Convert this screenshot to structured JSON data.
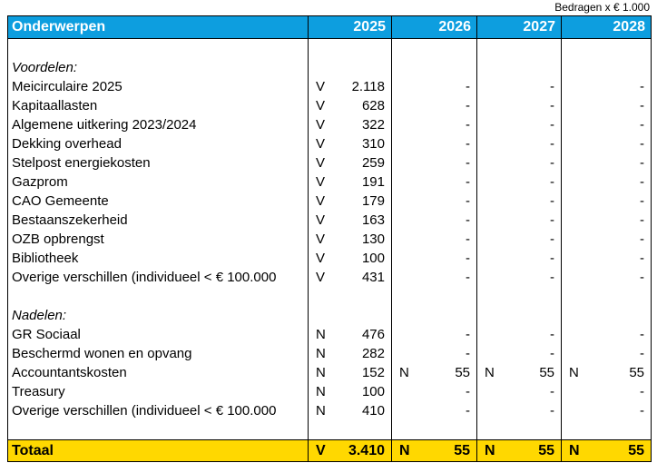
{
  "caption": "Bedragen x € 1.000",
  "colors": {
    "header_bg": "#0D9EDF",
    "header_text": "#ffffff",
    "total_bg": "#FFD800",
    "border": "#000000"
  },
  "table": {
    "header": {
      "label": "Onderwerpen",
      "years": [
        "2025",
        "2026",
        "2027",
        "2028"
      ]
    },
    "rows": [
      {
        "label": "",
        "italic": false,
        "cells": [
          {
            "sign": "",
            "value": ""
          },
          {
            "sign": "",
            "value": ""
          },
          {
            "sign": "",
            "value": ""
          },
          {
            "sign": "",
            "value": ""
          }
        ]
      },
      {
        "label": "Voordelen:",
        "italic": true,
        "cells": [
          {
            "sign": "",
            "value": ""
          },
          {
            "sign": "",
            "value": ""
          },
          {
            "sign": "",
            "value": ""
          },
          {
            "sign": "",
            "value": ""
          }
        ]
      },
      {
        "label": "Meicirculaire 2025",
        "italic": false,
        "cells": [
          {
            "sign": "V",
            "value": "2.118"
          },
          {
            "sign": "",
            "value": "-"
          },
          {
            "sign": "",
            "value": "-"
          },
          {
            "sign": "",
            "value": "-"
          }
        ]
      },
      {
        "label": "Kapitaallasten",
        "italic": false,
        "cells": [
          {
            "sign": "V",
            "value": "628"
          },
          {
            "sign": "",
            "value": "-"
          },
          {
            "sign": "",
            "value": "-"
          },
          {
            "sign": "",
            "value": "-"
          }
        ]
      },
      {
        "label": "Algemene uitkering 2023/2024",
        "italic": false,
        "cells": [
          {
            "sign": "V",
            "value": "322"
          },
          {
            "sign": "",
            "value": "-"
          },
          {
            "sign": "",
            "value": "-"
          },
          {
            "sign": "",
            "value": "-"
          }
        ]
      },
      {
        "label": "Dekking overhead",
        "italic": false,
        "cells": [
          {
            "sign": "V",
            "value": "310"
          },
          {
            "sign": "",
            "value": "-"
          },
          {
            "sign": "",
            "value": "-"
          },
          {
            "sign": "",
            "value": "-"
          }
        ]
      },
      {
        "label": "Stelpost energiekosten",
        "italic": false,
        "cells": [
          {
            "sign": "V",
            "value": "259"
          },
          {
            "sign": "",
            "value": "-"
          },
          {
            "sign": "",
            "value": "-"
          },
          {
            "sign": "",
            "value": "-"
          }
        ]
      },
      {
        "label": "Gazprom",
        "italic": false,
        "cells": [
          {
            "sign": "V",
            "value": "191"
          },
          {
            "sign": "",
            "value": "-"
          },
          {
            "sign": "",
            "value": "-"
          },
          {
            "sign": "",
            "value": "-"
          }
        ]
      },
      {
        "label": "CAO Gemeente",
        "italic": false,
        "cells": [
          {
            "sign": "V",
            "value": "179"
          },
          {
            "sign": "",
            "value": "-"
          },
          {
            "sign": "",
            "value": "-"
          },
          {
            "sign": "",
            "value": "-"
          }
        ]
      },
      {
        "label": "Bestaanszekerheid",
        "italic": false,
        "cells": [
          {
            "sign": "V",
            "value": "163"
          },
          {
            "sign": "",
            "value": "-"
          },
          {
            "sign": "",
            "value": "-"
          },
          {
            "sign": "",
            "value": "-"
          }
        ]
      },
      {
        "label": "OZB opbrengst",
        "italic": false,
        "cells": [
          {
            "sign": "V",
            "value": "130"
          },
          {
            "sign": "",
            "value": "-"
          },
          {
            "sign": "",
            "value": "-"
          },
          {
            "sign": "",
            "value": "-"
          }
        ]
      },
      {
        "label": "Bibliotheek",
        "italic": false,
        "cells": [
          {
            "sign": "V",
            "value": "100"
          },
          {
            "sign": "",
            "value": "-"
          },
          {
            "sign": "",
            "value": "-"
          },
          {
            "sign": "",
            "value": "-"
          }
        ]
      },
      {
        "label": "Overige verschillen (individueel < € 100.000",
        "italic": false,
        "cells": [
          {
            "sign": "V",
            "value": "431"
          },
          {
            "sign": "",
            "value": "-"
          },
          {
            "sign": "",
            "value": "-"
          },
          {
            "sign": "",
            "value": "-"
          }
        ]
      },
      {
        "label": "",
        "italic": false,
        "cells": [
          {
            "sign": "",
            "value": ""
          },
          {
            "sign": "",
            "value": ""
          },
          {
            "sign": "",
            "value": ""
          },
          {
            "sign": "",
            "value": ""
          }
        ]
      },
      {
        "label": "Nadelen:",
        "italic": true,
        "cells": [
          {
            "sign": "",
            "value": ""
          },
          {
            "sign": "",
            "value": ""
          },
          {
            "sign": "",
            "value": ""
          },
          {
            "sign": "",
            "value": ""
          }
        ]
      },
      {
        "label": "GR Sociaal",
        "italic": false,
        "cells": [
          {
            "sign": "N",
            "value": "476"
          },
          {
            "sign": "",
            "value": "-"
          },
          {
            "sign": "",
            "value": "-"
          },
          {
            "sign": "",
            "value": "-"
          }
        ]
      },
      {
        "label": "Beschermd wonen en opvang",
        "italic": false,
        "cells": [
          {
            "sign": "N",
            "value": "282"
          },
          {
            "sign": "",
            "value": "-"
          },
          {
            "sign": "",
            "value": "-"
          },
          {
            "sign": "",
            "value": "-"
          }
        ]
      },
      {
        "label": "Accountantskosten",
        "italic": false,
        "cells": [
          {
            "sign": "N",
            "value": "152"
          },
          {
            "sign": "N",
            "value": "55"
          },
          {
            "sign": "N",
            "value": "55"
          },
          {
            "sign": "N",
            "value": "55"
          }
        ]
      },
      {
        "label": "Treasury",
        "italic": false,
        "cells": [
          {
            "sign": "N",
            "value": "100"
          },
          {
            "sign": "",
            "value": "-"
          },
          {
            "sign": "",
            "value": "-"
          },
          {
            "sign": "",
            "value": "-"
          }
        ]
      },
      {
        "label": "Overige verschillen (individueel < € 100.000",
        "italic": false,
        "cells": [
          {
            "sign": "N",
            "value": "410"
          },
          {
            "sign": "",
            "value": "-"
          },
          {
            "sign": "",
            "value": "-"
          },
          {
            "sign": "",
            "value": "-"
          }
        ]
      },
      {
        "label": "",
        "italic": false,
        "cells": [
          {
            "sign": "",
            "value": ""
          },
          {
            "sign": "",
            "value": ""
          },
          {
            "sign": "",
            "value": ""
          },
          {
            "sign": "",
            "value": ""
          }
        ]
      }
    ],
    "total": {
      "label": "Totaal",
      "cells": [
        {
          "sign": "V",
          "value": "3.410"
        },
        {
          "sign": "N",
          "value": "55"
        },
        {
          "sign": "N",
          "value": "55"
        },
        {
          "sign": "N",
          "value": "55"
        }
      ]
    }
  }
}
